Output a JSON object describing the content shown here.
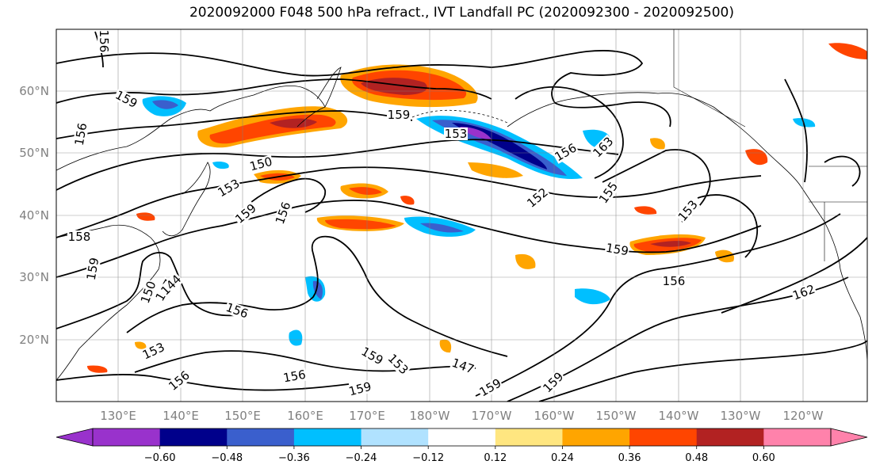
{
  "title": "2020092000 F048 500 hPa refract., IVT Landfall PC (2020092300 - 2020092500)",
  "map": {
    "lat_labels": [
      "60°N",
      "50°N",
      "40°N",
      "30°N",
      "20°N"
    ],
    "lon_labels": [
      "130°E",
      "140°E",
      "150°E",
      "160°E",
      "170°E",
      "180°W",
      "170°W",
      "160°W",
      "150°W",
      "140°W",
      "130°W",
      "120°W"
    ],
    "contour_levels_shown": [
      "156",
      "159",
      "156",
      "150",
      "153",
      "159",
      "156",
      "159",
      "153",
      "156",
      "163",
      "152",
      "155",
      "158",
      "159",
      "150",
      "147",
      "144",
      "153",
      "159",
      "156",
      "162",
      "156",
      "153",
      "159",
      "153",
      "147",
      "159",
      "159",
      "156",
      "159",
      "156"
    ],
    "contour_color": "#000000",
    "grid": true
  },
  "colorbar": {
    "tick_labels": [
      "−0.60",
      "−0.48",
      "−0.36",
      "−0.24",
      "−0.12",
      "0.12",
      "0.24",
      "0.36",
      "0.48",
      "0.60"
    ],
    "tick_values": [
      -0.6,
      -0.48,
      -0.36,
      -0.24,
      -0.12,
      0.12,
      0.24,
      0.36,
      0.48,
      0.6
    ],
    "colors": [
      "#9932cc",
      "#00008b",
      "#3a5fcd",
      "#00bfff",
      "#b0e2ff",
      "#ffffff",
      "#ffe680",
      "#ffa500",
      "#ff4500",
      "#b22222",
      "#ff82ab"
    ],
    "extend": "both"
  }
}
